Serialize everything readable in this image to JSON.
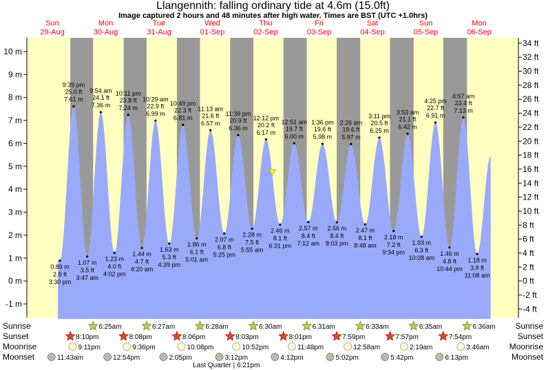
{
  "title": "Llangennith: falling  ordinary tide at 4.6m (15.0ft)",
  "subtitle": "Image captured 2 hours and 48 minutes after high water. Times are BST (UTC +1.0hrs)",
  "colors": {
    "day": "#ffffc0",
    "night": "#999999",
    "tide": "#9aaafb",
    "day_label": "#ff0000",
    "now_marker": "#ffff00"
  },
  "chart_data": {
    "type": "area",
    "y_left": {
      "unit": "m",
      "range": [
        -1.6,
        10.6
      ],
      "ticks": [
        -1,
        0,
        1,
        2,
        3,
        4,
        5,
        6,
        7,
        8,
        9,
        10
      ]
    },
    "y_right": {
      "unit": "ft",
      "ticks": [
        -4,
        -2,
        0,
        2,
        4,
        6,
        8,
        10,
        12,
        14,
        16,
        18,
        20,
        22,
        24,
        26,
        28,
        30,
        32,
        34
      ]
    },
    "days": [
      {
        "dow": "Sun",
        "date": "29-Aug"
      },
      {
        "dow": "Mon",
        "date": "30-Aug"
      },
      {
        "dow": "Tue",
        "date": "31-Aug"
      },
      {
        "dow": "Wed",
        "date": "01-Sep"
      },
      {
        "dow": "Thu",
        "date": "02-Sep"
      },
      {
        "dow": "Fri",
        "date": "03-Sep"
      },
      {
        "dow": "Sat",
        "date": "04-Sep"
      },
      {
        "dow": "Sun",
        "date": "05-Sep"
      },
      {
        "dow": "Mon",
        "date": "06-Sep"
      }
    ],
    "tides": [
      {
        "type": "low",
        "day": 0,
        "time": "3:30 pm",
        "m": 0.89,
        "m_label": "0.89 m",
        "ft_label": "2.9 ft"
      },
      {
        "type": "high",
        "day": 0,
        "time": "9:39 pm",
        "m": 7.61,
        "m_label": "7.61 m",
        "ft_label": "25.0 ft"
      },
      {
        "type": "low",
        "day": 1,
        "time": "3:47 am",
        "m": 1.07,
        "m_label": "1.07 m",
        "ft_label": "3.5 ft"
      },
      {
        "type": "high",
        "day": 1,
        "time": "9:54 am",
        "m": 7.36,
        "m_label": "7.36 m",
        "ft_label": "24.1 ft"
      },
      {
        "type": "low",
        "day": 1,
        "time": "4:02 pm",
        "m": 1.23,
        "m_label": "1.23 m",
        "ft_label": "4.0 ft"
      },
      {
        "type": "high",
        "day": 1,
        "time": "10:11 pm",
        "m": 7.24,
        "m_label": "7.24 m",
        "ft_label": "23.8 ft"
      },
      {
        "type": "low",
        "day": 2,
        "time": "4:20 am",
        "m": 1.44,
        "m_label": "1.44 m",
        "ft_label": "4.7 ft"
      },
      {
        "type": "high",
        "day": 2,
        "time": "10:29 am",
        "m": 6.99,
        "m_label": "6.99 m",
        "ft_label": "22.9 ft"
      },
      {
        "type": "low",
        "day": 2,
        "time": "4:39 pm",
        "m": 1.63,
        "m_label": "1.63 m",
        "ft_label": "5.3 ft"
      },
      {
        "type": "high",
        "day": 2,
        "time": "10:49 pm",
        "m": 6.81,
        "m_label": "6.81 m",
        "ft_label": "22.3 ft"
      },
      {
        "type": "low",
        "day": 3,
        "time": "5:01 am",
        "m": 1.86,
        "m_label": "1.86 m",
        "ft_label": "6.1 ft"
      },
      {
        "type": "high",
        "day": 3,
        "time": "11:13 am",
        "m": 6.57,
        "m_label": "6.57 m",
        "ft_label": "21.6 ft"
      },
      {
        "type": "low",
        "day": 3,
        "time": "5:25 pm",
        "m": 2.07,
        "m_label": "2.07 m",
        "ft_label": "6.8 ft"
      },
      {
        "type": "high",
        "day": 3,
        "time": "11:39 pm",
        "m": 6.36,
        "m_label": "6.36 m",
        "ft_label": "20.9 ft"
      },
      {
        "type": "low",
        "day": 4,
        "time": "5:55 am",
        "m": 2.28,
        "m_label": "2.28 m",
        "ft_label": "7.5 ft"
      },
      {
        "type": "high",
        "day": 4,
        "time": "12:12 pm",
        "m": 6.17,
        "m_label": "6.17 m",
        "ft_label": "20.2 ft"
      },
      {
        "type": "low",
        "day": 4,
        "time": "6:31 pm",
        "m": 2.46,
        "m_label": "2.46 m",
        "ft_label": "8.1 ft"
      },
      {
        "type": "high",
        "day": 5,
        "time": "12:51 am",
        "m": 6.0,
        "m_label": "6.00 m",
        "ft_label": "19.7 ft"
      },
      {
        "type": "low",
        "day": 5,
        "time": "7:12 am",
        "m": 2.57,
        "m_label": "2.57 m",
        "ft_label": "8.4 ft"
      },
      {
        "type": "high",
        "day": 5,
        "time": "1:36 pm",
        "m": 5.98,
        "m_label": "5.98 m",
        "ft_label": "19.6 ft"
      },
      {
        "type": "low",
        "day": 5,
        "time": "8:03 pm",
        "m": 2.56,
        "m_label": "2.56 m",
        "ft_label": "8.4 ft"
      },
      {
        "type": "high",
        "day": 6,
        "time": "2:26 am",
        "m": 5.97,
        "m_label": "5.97 m",
        "ft_label": "19.6 ft"
      },
      {
        "type": "low",
        "day": 6,
        "time": "8:48 am",
        "m": 2.47,
        "m_label": "2.47 m",
        "ft_label": "8.1 ft"
      },
      {
        "type": "high",
        "day": 6,
        "time": "3:11 pm",
        "m": 6.25,
        "m_label": "6.25 m",
        "ft_label": "20.5 ft"
      },
      {
        "type": "low",
        "day": 6,
        "time": "9:34 pm",
        "m": 2.18,
        "m_label": "2.18 m",
        "ft_label": "7.2 ft"
      },
      {
        "type": "high",
        "day": 7,
        "time": "3:53 am",
        "m": 6.42,
        "m_label": "6.42 m",
        "ft_label": "21.1 ft"
      },
      {
        "type": "low",
        "day": 7,
        "time": "10:08 am",
        "m": 1.93,
        "m_label": "1.93 m",
        "ft_label": "6.3 ft"
      },
      {
        "type": "high",
        "day": 7,
        "time": "4:25 pm",
        "m": 6.91,
        "m_label": "6.91 m",
        "ft_label": "22.7 ft"
      },
      {
        "type": "low",
        "day": 7,
        "time": "10:44 pm",
        "m": 1.46,
        "m_label": "1.46 m",
        "ft_label": "4.8 ft"
      },
      {
        "type": "high",
        "day": 8,
        "time": "4:57 am",
        "m": 7.13,
        "m_label": "7.13 m",
        "ft_label": "23.4 ft"
      },
      {
        "type": "low",
        "day": 8,
        "time": "11:08 am",
        "m": 1.18,
        "m_label": "1.18 m",
        "ft_label": "3.9 ft"
      }
    ],
    "series_end": {
      "day": 8,
      "time": "5:15 pm",
      "m": 5.45
    },
    "now": {
      "day": 4,
      "time": "3:00 pm",
      "m": 4.6
    },
    "sunrise": [
      {
        "day": 1,
        "time": "6:25am"
      },
      {
        "day": 2,
        "time": "6:27am"
      },
      {
        "day": 3,
        "time": "6:28am"
      },
      {
        "day": 4,
        "time": "6:30am"
      },
      {
        "day": 5,
        "time": "6:31am"
      },
      {
        "day": 6,
        "time": "6:33am"
      },
      {
        "day": 7,
        "time": "6:35am"
      },
      {
        "day": 8,
        "time": "6:36am"
      }
    ],
    "sunset": [
      {
        "day": 0,
        "time": "8:10pm"
      },
      {
        "day": 1,
        "time": "8:08pm"
      },
      {
        "day": 2,
        "time": "8:06pm"
      },
      {
        "day": 3,
        "time": "8:03pm"
      },
      {
        "day": 4,
        "time": "8:01pm"
      },
      {
        "day": 5,
        "time": "7:59pm"
      },
      {
        "day": 6,
        "time": "7:57pm"
      },
      {
        "day": 7,
        "time": "7:54pm"
      }
    ],
    "moonrise": [
      {
        "day": 0,
        "time": "9:11pm"
      },
      {
        "day": 1,
        "time": "9:36pm"
      },
      {
        "day": 2,
        "time": "10:08pm"
      },
      {
        "day": 3,
        "time": "10:52pm"
      },
      {
        "day": 4,
        "time": "11:48pm"
      },
      {
        "day": 6,
        "time": "12:58am"
      },
      {
        "day": 7,
        "time": "2:19am"
      },
      {
        "day": 8,
        "time": "3:46am"
      }
    ],
    "moonset": [
      {
        "day": 0,
        "time": "11:43am"
      },
      {
        "day": 1,
        "time": "12:54pm"
      },
      {
        "day": 2,
        "time": "2:05pm"
      },
      {
        "day": 3,
        "time": "3:12pm"
      },
      {
        "day": 4,
        "time": "4:12pm"
      },
      {
        "day": 5,
        "time": "5:02pm"
      },
      {
        "day": 6,
        "time": "5:42pm"
      },
      {
        "day": 7,
        "time": "6:13pm"
      }
    ],
    "moon_phase": {
      "day": 3,
      "time": "6:21pm",
      "label": "Last Quarter | 6:21pm"
    },
    "row_labels": {
      "sunrise": "Sunrise",
      "sunset": "Sunset",
      "moonrise": "Moonrise",
      "moonset": "Moonset"
    }
  }
}
